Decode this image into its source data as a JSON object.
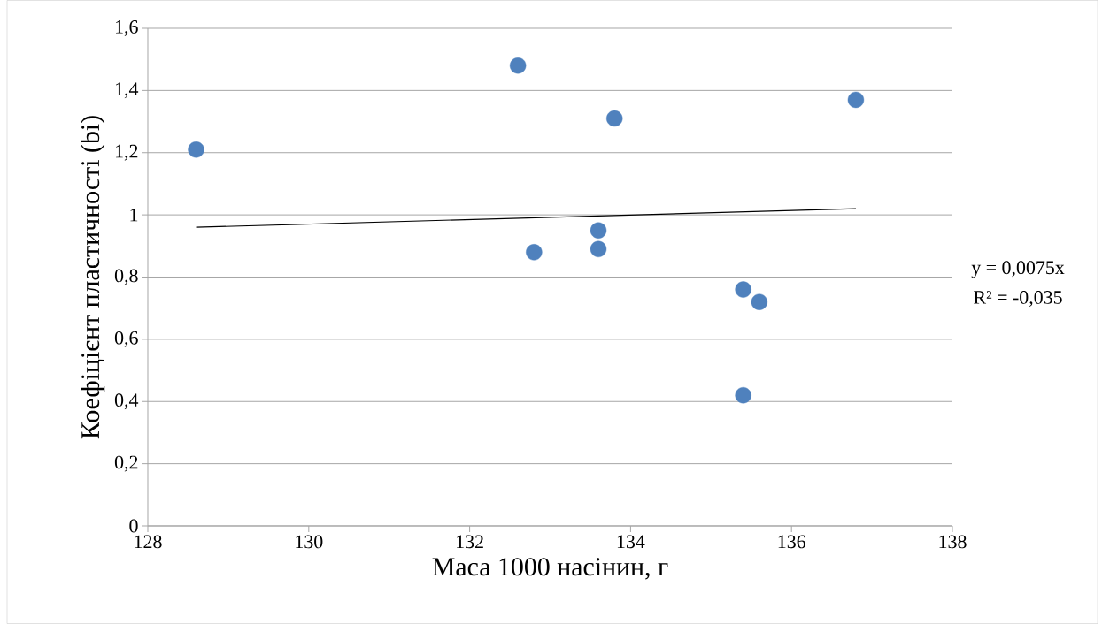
{
  "chart_data": {
    "type": "scatter",
    "xlabel": "Маса 1000 насінин, г",
    "ylabel": "Коефіцієнт пластичності (bi)",
    "xlim": [
      128,
      138
    ],
    "xticks": [
      128,
      130,
      132,
      134,
      136,
      138
    ],
    "ylim": [
      0,
      1.6
    ],
    "yticks": [
      0,
      {
        "value": 0.2,
        "label": "0,2"
      },
      {
        "value": 0.4,
        "label": "0,4"
      },
      {
        "value": 0.6,
        "label": "0,6"
      },
      {
        "value": 0.8,
        "label": "0,8"
      },
      1,
      {
        "value": 1.2,
        "label": "1,2"
      },
      {
        "value": 1.4,
        "label": "1,4"
      },
      {
        "value": 1.6,
        "label": "1,6"
      }
    ],
    "grid": "y",
    "marker": "circle",
    "series": [
      {
        "color": "#4f81bd",
        "x": [
          128.6,
          132.6,
          132.8,
          133.6,
          133.6,
          133.8,
          135.4,
          135.6,
          135.4,
          136.8
        ],
        "values": [
          1.21,
          1.48,
          0.88,
          0.95,
          0.89,
          1.31,
          0.76,
          0.72,
          0.42,
          1.37
        ]
      },
      {
        "type": "line",
        "color": "#000000",
        "marker": "none",
        "x": [
          128.6,
          136.8
        ],
        "values": [
          0.96,
          1.02
        ]
      }
    ],
    "annotations": [
      "y = 0,0075x",
      "R² = -0,035"
    ]
  }
}
